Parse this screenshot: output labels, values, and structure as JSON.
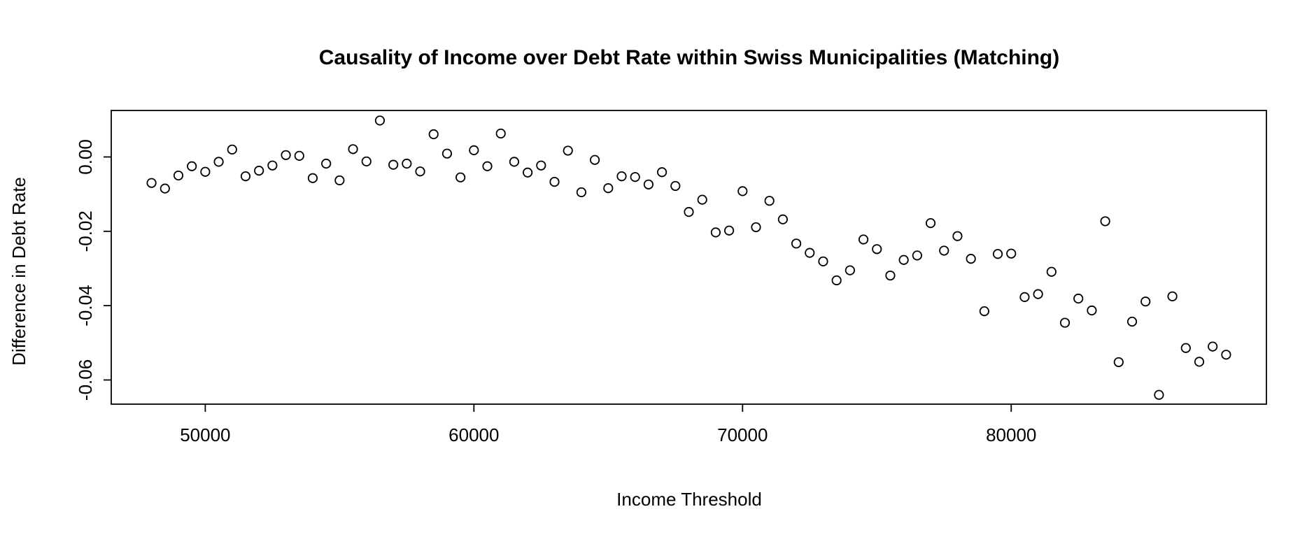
{
  "chart_data": {
    "type": "scatter",
    "title": "Causality of Income over Debt Rate within Swiss Municipalities (Matching)",
    "xlabel": "Income Threshold",
    "ylabel": "Difference in Debt Rate",
    "xlim": [
      46500,
      89500
    ],
    "ylim": [
      -0.0665,
      0.0125
    ],
    "x_ticks": [
      50000,
      60000,
      70000,
      80000
    ],
    "y_ticks": [
      -0.06,
      -0.04,
      -0.02,
      0.0
    ],
    "x_tick_labels": [
      "50000",
      "60000",
      "70000",
      "80000"
    ],
    "y_tick_labels": [
      "-0.06",
      "-0.04",
      "-0.02",
      "0.00"
    ],
    "grid": false,
    "marker": "open-circle",
    "x": [
      48000,
      48500,
      49000,
      49500,
      50000,
      50500,
      51000,
      51500,
      52000,
      52500,
      53000,
      53500,
      54000,
      54500,
      55000,
      55500,
      56000,
      56500,
      57000,
      57500,
      58000,
      58500,
      59000,
      59500,
      60000,
      60500,
      61000,
      61500,
      62000,
      62500,
      63000,
      63500,
      64000,
      64500,
      65000,
      65500,
      66000,
      66500,
      67000,
      67500,
      68000,
      68500,
      69000,
      69500,
      70000,
      70500,
      71000,
      71500,
      72000,
      72500,
      73000,
      73500,
      74000,
      74500,
      75000,
      75500,
      76000,
      76500,
      77000,
      77500,
      78000,
      78500,
      79000,
      79500,
      80000,
      80500,
      81000,
      81500,
      82000,
      82500,
      83000,
      83500,
      84000,
      84500,
      85000,
      85500,
      86000,
      86500,
      87000,
      87500,
      88000
    ],
    "y": [
      -0.007,
      -0.0085,
      -0.005,
      -0.0025,
      -0.004,
      -0.0013,
      0.002,
      -0.0052,
      -0.0037,
      -0.0023,
      0.0005,
      0.0003,
      -0.0057,
      -0.0018,
      -0.0063,
      0.0021,
      -0.0012,
      0.0098,
      -0.0021,
      -0.0018,
      -0.0039,
      0.0061,
      0.0009,
      -0.0055,
      0.0018,
      -0.0025,
      0.0063,
      -0.0013,
      -0.0042,
      -0.0023,
      -0.0067,
      0.0017,
      -0.0095,
      -0.0008,
      -0.0084,
      -0.0052,
      -0.0054,
      -0.0074,
      -0.0041,
      -0.0078,
      -0.0148,
      -0.0115,
      -0.0203,
      -0.0198,
      -0.0092,
      -0.0189,
      -0.0118,
      -0.0168,
      -0.0233,
      -0.0258,
      -0.0281,
      -0.0332,
      -0.0305,
      -0.0222,
      -0.0248,
      -0.0319,
      -0.0277,
      -0.0265,
      -0.0178,
      -0.0252,
      -0.0213,
      -0.0274,
      -0.0415,
      -0.0261,
      -0.026,
      -0.0377,
      -0.0369,
      -0.0309,
      -0.0446,
      -0.0381,
      -0.0413,
      -0.0173,
      -0.0552,
      -0.0443,
      -0.0389,
      -0.064,
      -0.0375,
      -0.0514,
      -0.0551,
      -0.051,
      -0.0532
    ]
  }
}
